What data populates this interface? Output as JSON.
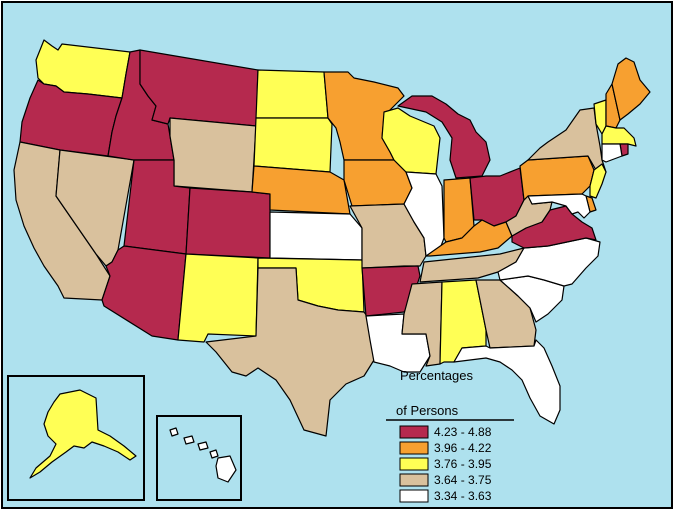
{
  "legend": {
    "title_line1": "Percentages",
    "title_line2": "of Persons",
    "classes": [
      {
        "label": "4.23 - 4.88",
        "color": "#b5294e"
      },
      {
        "label": "3.96 - 4.22",
        "color": "#f7a030"
      },
      {
        "label": "3.76 - 3.95",
        "color": "#ffff55"
      },
      {
        "label": "3.64 - 3.75",
        "color": "#d9c19d"
      },
      {
        "label": "3.34 - 3.63",
        "color": "#ffffff"
      }
    ]
  },
  "colors": {
    "ocean": "#aee1ee",
    "land_outline": "#000000"
  },
  "states": [
    {
      "name": "Washington",
      "class": 2
    },
    {
      "name": "Oregon",
      "class": 0
    },
    {
      "name": "California",
      "class": 3
    },
    {
      "name": "Nevada",
      "class": 3
    },
    {
      "name": "Idaho",
      "class": 0
    },
    {
      "name": "Montana",
      "class": 0
    },
    {
      "name": "Wyoming",
      "class": 3
    },
    {
      "name": "Utah",
      "class": 0
    },
    {
      "name": "Arizona",
      "class": 0
    },
    {
      "name": "Colorado",
      "class": 0
    },
    {
      "name": "New Mexico",
      "class": 2
    },
    {
      "name": "North Dakota",
      "class": 2
    },
    {
      "name": "South Dakota",
      "class": 2
    },
    {
      "name": "Nebraska",
      "class": 1
    },
    {
      "name": "Kansas",
      "class": 4
    },
    {
      "name": "Oklahoma",
      "class": 2
    },
    {
      "name": "Texas",
      "class": 3
    },
    {
      "name": "Minnesota",
      "class": 1
    },
    {
      "name": "Iowa",
      "class": 1
    },
    {
      "name": "Missouri",
      "class": 3
    },
    {
      "name": "Arkansas",
      "class": 0
    },
    {
      "name": "Louisiana",
      "class": 4
    },
    {
      "name": "Wisconsin",
      "class": 2
    },
    {
      "name": "Illinois",
      "class": 4
    },
    {
      "name": "Michigan",
      "class": 0
    },
    {
      "name": "Indiana",
      "class": 1
    },
    {
      "name": "Ohio",
      "class": 0
    },
    {
      "name": "Kentucky",
      "class": 1
    },
    {
      "name": "Tennessee",
      "class": 3
    },
    {
      "name": "Mississippi",
      "class": 3
    },
    {
      "name": "Alabama",
      "class": 2
    },
    {
      "name": "Georgia",
      "class": 3
    },
    {
      "name": "Florida",
      "class": 4
    },
    {
      "name": "South Carolina",
      "class": 4
    },
    {
      "name": "North Carolina",
      "class": 4
    },
    {
      "name": "Virginia",
      "class": 0
    },
    {
      "name": "West Virginia",
      "class": 3
    },
    {
      "name": "Pennsylvania",
      "class": 1
    },
    {
      "name": "New York",
      "class": 3
    },
    {
      "name": "Vermont",
      "class": 2
    },
    {
      "name": "New Hampshire",
      "class": 1
    },
    {
      "name": "Maine",
      "class": 1
    },
    {
      "name": "Massachusetts",
      "class": 2
    },
    {
      "name": "Rhode Island",
      "class": 0
    },
    {
      "name": "Connecticut",
      "class": 4
    },
    {
      "name": "New Jersey",
      "class": 2
    },
    {
      "name": "Delaware",
      "class": 1
    },
    {
      "name": "Maryland",
      "class": 4
    },
    {
      "name": "Alaska",
      "class": 2
    },
    {
      "name": "Hawaii",
      "class": 4
    }
  ]
}
